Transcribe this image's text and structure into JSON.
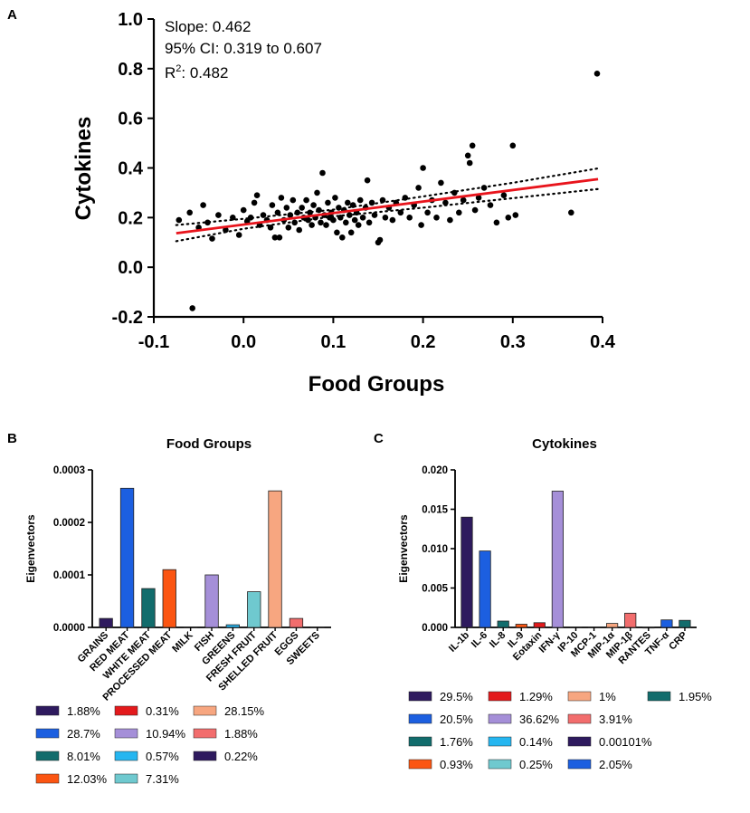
{
  "chart_data": [
    {
      "panel": "A",
      "type": "scatter",
      "xlabel": "Food Groups",
      "ylabel": "Cytokines",
      "xlim": [
        -0.1,
        0.4
      ],
      "ylim": [
        -0.2,
        1.0
      ],
      "xticks": [
        -0.1,
        0.0,
        0.1,
        0.2,
        0.3,
        0.4
      ],
      "xtick_labels": [
        "-0.1",
        "0.0",
        "0.1",
        "0.2",
        "0.3",
        "0.4"
      ],
      "yticks": [
        -0.2,
        0.0,
        0.2,
        0.4,
        0.6,
        0.8,
        1.0
      ],
      "ytick_labels": [
        "-0.2",
        "0.0",
        "0.2",
        "0.4",
        "0.6",
        "0.8",
        "1.0"
      ],
      "annotations": {
        "slope": "Slope: 0.462",
        "ci": "95% CI: 0.319 to 0.607",
        "r2_prefix": "R",
        "r2_sup": "2",
        "r2_value": ": 0.482"
      },
      "fit": {
        "x": [
          -0.075,
          0.395
        ],
        "y": [
          0.137,
          0.355
        ],
        "color": "#e8141c"
      },
      "ci_band": {
        "upper": [
          [
            -0.075,
            0.17
          ],
          [
            0.0,
            0.195
          ],
          [
            0.1,
            0.232
          ],
          [
            0.2,
            0.285
          ],
          [
            0.3,
            0.34
          ],
          [
            0.395,
            0.398
          ]
        ],
        "lower": [
          [
            -0.075,
            0.105
          ],
          [
            0.0,
            0.155
          ],
          [
            0.1,
            0.205
          ],
          [
            0.2,
            0.24
          ],
          [
            0.3,
            0.278
          ],
          [
            0.395,
            0.315
          ]
        ]
      },
      "points": [
        [
          -0.072,
          0.19
        ],
        [
          -0.06,
          0.22
        ],
        [
          -0.057,
          -0.165
        ],
        [
          -0.05,
          0.16
        ],
        [
          -0.045,
          0.25
        ],
        [
          -0.04,
          0.18
        ],
        [
          -0.035,
          0.115
        ],
        [
          -0.028,
          0.21
        ],
        [
          -0.02,
          0.15
        ],
        [
          -0.012,
          0.2
        ],
        [
          -0.005,
          0.13
        ],
        [
          0.0,
          0.23
        ],
        [
          0.004,
          0.185
        ],
        [
          0.008,
          0.2
        ],
        [
          0.012,
          0.26
        ],
        [
          0.015,
          0.29
        ],
        [
          0.018,
          0.17
        ],
        [
          0.022,
          0.21
        ],
        [
          0.026,
          0.19
        ],
        [
          0.03,
          0.16
        ],
        [
          0.032,
          0.25
        ],
        [
          0.035,
          0.12
        ],
        [
          0.038,
          0.22
        ],
        [
          0.04,
          0.12
        ],
        [
          0.042,
          0.28
        ],
        [
          0.045,
          0.19
        ],
        [
          0.048,
          0.24
        ],
        [
          0.05,
          0.16
        ],
        [
          0.052,
          0.21
        ],
        [
          0.055,
          0.27
        ],
        [
          0.057,
          0.18
        ],
        [
          0.06,
          0.22
        ],
        [
          0.062,
          0.15
        ],
        [
          0.065,
          0.24
        ],
        [
          0.067,
          0.2
        ],
        [
          0.07,
          0.27
        ],
        [
          0.072,
          0.19
        ],
        [
          0.074,
          0.22
        ],
        [
          0.076,
          0.17
        ],
        [
          0.078,
          0.25
        ],
        [
          0.08,
          0.2
        ],
        [
          0.082,
          0.3
        ],
        [
          0.084,
          0.23
        ],
        [
          0.086,
          0.18
        ],
        [
          0.088,
          0.38
        ],
        [
          0.09,
          0.21
        ],
        [
          0.092,
          0.17
        ],
        [
          0.094,
          0.26
        ],
        [
          0.096,
          0.2
        ],
        [
          0.098,
          0.22
        ],
        [
          0.1,
          0.19
        ],
        [
          0.102,
          0.28
        ],
        [
          0.104,
          0.14
        ],
        [
          0.106,
          0.24
        ],
        [
          0.108,
          0.2
        ],
        [
          0.11,
          0.12
        ],
        [
          0.112,
          0.23
        ],
        [
          0.114,
          0.18
        ],
        [
          0.116,
          0.26
        ],
        [
          0.118,
          0.21
        ],
        [
          0.12,
          0.14
        ],
        [
          0.122,
          0.25
        ],
        [
          0.124,
          0.19
        ],
        [
          0.126,
          0.22
        ],
        [
          0.128,
          0.17
        ],
        [
          0.13,
          0.27
        ],
        [
          0.133,
          0.2
        ],
        [
          0.136,
          0.24
        ],
        [
          0.138,
          0.35
        ],
        [
          0.14,
          0.18
        ],
        [
          0.143,
          0.26
        ],
        [
          0.146,
          0.21
        ],
        [
          0.15,
          0.1
        ],
        [
          0.152,
          0.11
        ],
        [
          0.155,
          0.27
        ],
        [
          0.158,
          0.2
        ],
        [
          0.162,
          0.24
        ],
        [
          0.166,
          0.19
        ],
        [
          0.17,
          0.26
        ],
        [
          0.175,
          0.22
        ],
        [
          0.18,
          0.28
        ],
        [
          0.185,
          0.2
        ],
        [
          0.19,
          0.25
        ],
        [
          0.195,
          0.32
        ],
        [
          0.198,
          0.17
        ],
        [
          0.2,
          0.4
        ],
        [
          0.205,
          0.22
        ],
        [
          0.21,
          0.27
        ],
        [
          0.215,
          0.2
        ],
        [
          0.22,
          0.34
        ],
        [
          0.225,
          0.26
        ],
        [
          0.23,
          0.19
        ],
        [
          0.235,
          0.3
        ],
        [
          0.24,
          0.22
        ],
        [
          0.245,
          0.27
        ],
        [
          0.25,
          0.45
        ],
        [
          0.252,
          0.42
        ],
        [
          0.255,
          0.49
        ],
        [
          0.258,
          0.23
        ],
        [
          0.262,
          0.28
        ],
        [
          0.268,
          0.32
        ],
        [
          0.275,
          0.25
        ],
        [
          0.282,
          0.18
        ],
        [
          0.29,
          0.29
        ],
        [
          0.295,
          0.2
        ],
        [
          0.3,
          0.49
        ],
        [
          0.303,
          0.21
        ],
        [
          0.365,
          0.22
        ],
        [
          0.394,
          0.78
        ]
      ]
    },
    {
      "panel": "B",
      "type": "bar",
      "title": "Food Groups",
      "ylabel": "Eigenvectors",
      "ylim": [
        0,
        0.0003
      ],
      "yticks": [
        0,
        0.0001,
        0.0002,
        0.0003
      ],
      "ytick_labels": [
        "0.0000",
        "0.0001",
        "0.0002",
        "0.0003"
      ],
      "categories": [
        "GRAINS",
        "RED MEAT",
        "WHITE MEAT",
        "PROCESSED MEAT",
        "MILK",
        "FISH",
        "GREENS",
        "FRESH FRUIT",
        "SHELLED FRUIT",
        "EGGS",
        "SWEETS"
      ],
      "values": [
        1.7e-05,
        0.000265,
        7.4e-05,
        0.00011,
        8e-07,
        0.0001,
        5e-06,
        6.8e-05,
        0.00026,
        1.7e-05,
        7e-07
      ],
      "colors": [
        "#2e1a5e",
        "#1c5fe0",
        "#126c6c",
        "#fb5512",
        "#e31a1c",
        "#a58fd8",
        "#26b6f0",
        "#6fc9cf",
        "#f7a680",
        "#f26d6d",
        "#2e1a5e"
      ],
      "legend": [
        "1.88%",
        "28.7%",
        "8.01%",
        "12.03%",
        "0.31%",
        "10.94%",
        "0.57%",
        "7.31%",
        "28.15%",
        "1.88%",
        "0.22%"
      ]
    },
    {
      "panel": "C",
      "type": "bar",
      "title": "Cytokines",
      "ylabel": "Eigenvectors",
      "ylim": [
        0,
        0.02
      ],
      "yticks": [
        0,
        0.005,
        0.01,
        0.015,
        0.02
      ],
      "ytick_labels": [
        "0.000",
        "0.005",
        "0.010",
        "0.015",
        "0.020"
      ],
      "categories": [
        "IL-1b",
        "IL-6",
        "IL-8",
        "IL-9",
        "Eotaxin",
        "IFN-γ",
        "IP-10",
        "MCP-1",
        "MIP-1α",
        "MIP-1β",
        "RANTES",
        "TNF-α",
        "CRP"
      ],
      "values": [
        0.014,
        0.0097,
        0.0008,
        0.0004,
        0.0006,
        0.0173,
        3e-05,
        5e-05,
        0.0005,
        0.0018,
        1e-05,
        0.00095,
        0.0009
      ],
      "colors": [
        "#2e1a5e",
        "#1c5fe0",
        "#126c6c",
        "#fb5512",
        "#e31a1c",
        "#a58fd8",
        "#26b6f0",
        "#6fc9cf",
        "#f7a680",
        "#f26d6d",
        "#2e1a5e",
        "#1c5fe0",
        "#126c6c"
      ],
      "legend": [
        "29.5%",
        "20.5%",
        "1.76%",
        "0.93%",
        "1.29%",
        "36.62%",
        "0.14%",
        "0.25%",
        "1%",
        "3.91%",
        "0.00101%",
        "2.05%",
        "1.95%"
      ]
    }
  ],
  "panel_labels": {
    "a": "A",
    "b": "B",
    "c": "C"
  }
}
